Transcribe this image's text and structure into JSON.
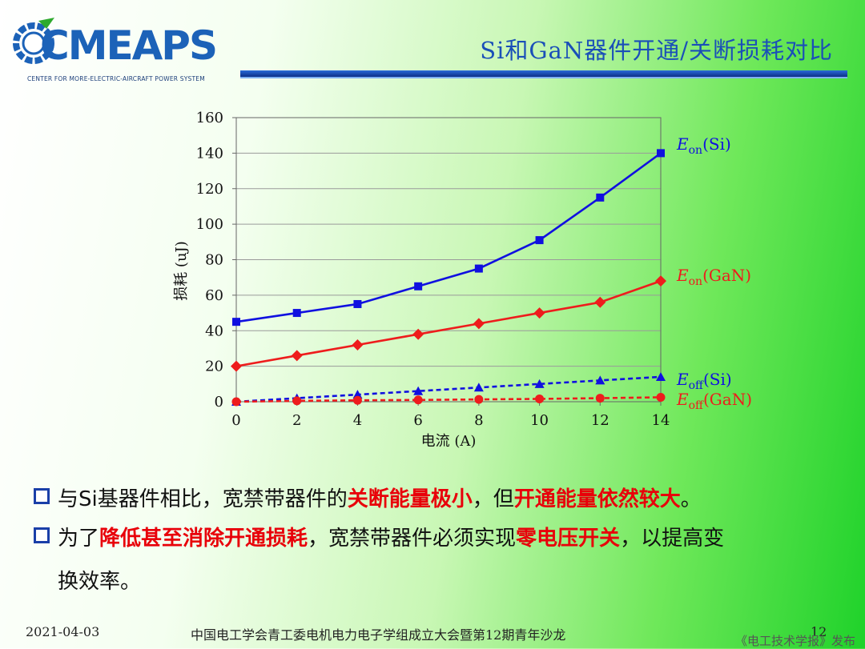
{
  "header": {
    "logo_text": "CMEAPS",
    "logo_subtitle": "CENTER FOR MORE-ELECTRIC-AIRCRAFT POWER SYSTEM",
    "title": "Si和GaN器件开通/关断损耗对比"
  },
  "chart_data": {
    "type": "line",
    "xlabel": "电流 (A)",
    "ylabel": "损耗 (uJ)",
    "xlim": [
      0,
      14
    ],
    "ylim": [
      0,
      160
    ],
    "x_ticks": [
      "0",
      "2",
      "4",
      "6",
      "8",
      "10",
      "12",
      "14"
    ],
    "y_ticks": [
      "160",
      "140",
      "120",
      "100",
      "80",
      "60",
      "40",
      "20",
      "0"
    ],
    "x": [
      0,
      2,
      4,
      6,
      8,
      10,
      12,
      14
    ],
    "grid": "horizontal",
    "series": [
      {
        "name": "Eon(Si)",
        "label_main": "E",
        "label_sub": "on",
        "label_tail": "(Si)",
        "color": "#1010e0",
        "marker": "square",
        "dashed": false,
        "values": [
          45,
          50,
          55,
          65,
          75,
          91,
          115,
          140
        ]
      },
      {
        "name": "Eon(GaN)",
        "label_main": "E",
        "label_sub": "on",
        "label_tail": "(GaN)",
        "color": "#ee1c1c",
        "marker": "diamond",
        "dashed": false,
        "values": [
          20,
          26,
          32,
          38,
          44,
          50,
          56,
          68
        ]
      },
      {
        "name": "Eoff(Si)",
        "label_main": "E",
        "label_sub": "off",
        "label_tail": "(Si)",
        "color": "#1010e0",
        "marker": "triangle",
        "dashed": true,
        "values": [
          0,
          2,
          4,
          6,
          8,
          10,
          12,
          14
        ]
      },
      {
        "name": "Eoff(GaN)",
        "label_main": "E",
        "label_sub": "off",
        "label_tail": "(GaN)",
        "color": "#ee1c1c",
        "marker": "circle",
        "dashed": true,
        "values": [
          0,
          0.5,
          0.8,
          1.0,
          1.3,
          1.6,
          2.0,
          2.5
        ]
      }
    ]
  },
  "bullets": [
    {
      "pre": "与Si基器件相比，宽禁带器件的",
      "red1": "关断能量极小",
      "mid": "，但",
      "red2": "开通能量依然较大",
      "post": "。"
    },
    {
      "pre": "为了",
      "red1": "降低甚至消除开通损耗",
      "mid": "，宽禁带器件必须实现",
      "red2": "零电压开关",
      "post": "，以提高变",
      "cont": "换效率。"
    }
  ],
  "footer": {
    "date": "2021-04-03",
    "event": "中国电工学会青工委电机电力电子学组成立大会暨第12期青年沙龙",
    "page": "12",
    "source": "《电工技术学报》发布"
  },
  "colors": {
    "accent_blue": "#1c62b8",
    "highlight_red": "#e8000a"
  }
}
